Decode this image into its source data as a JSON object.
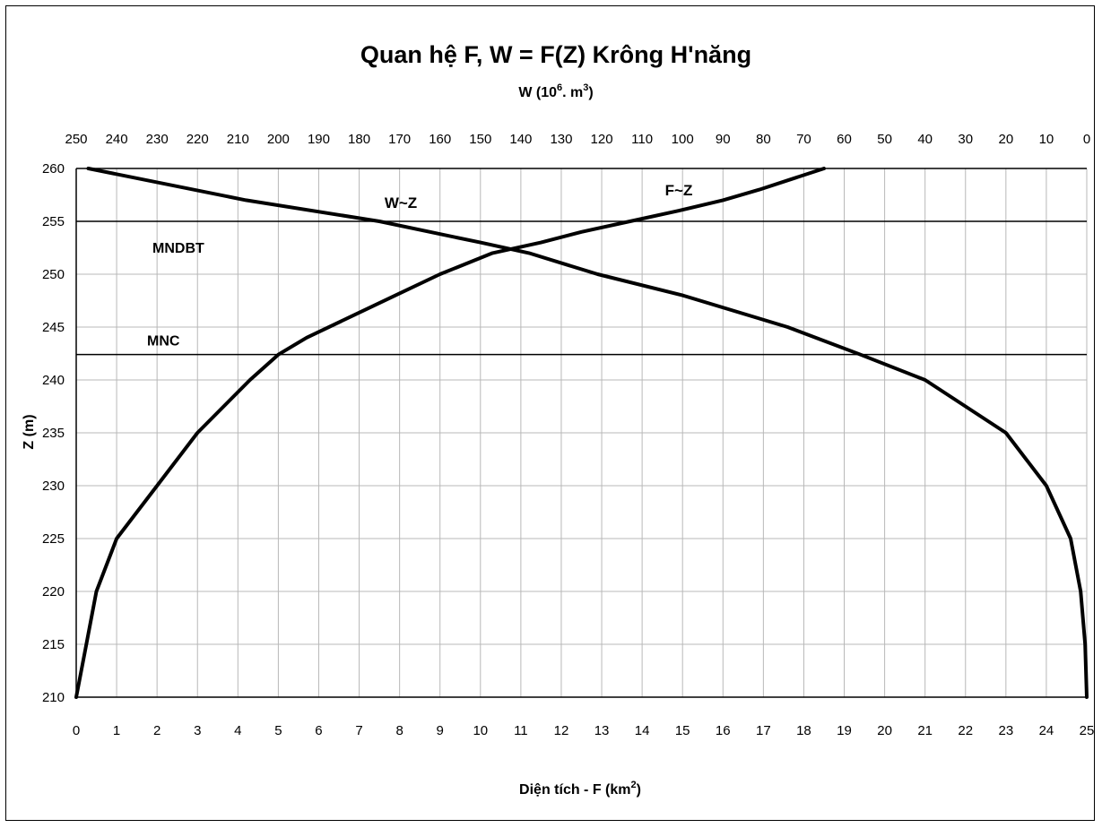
{
  "chart_data": {
    "type": "line",
    "title": "Quan hệ F, W = F(Z) Krông H'năng",
    "x_top_label_base": "W (10",
    "x_top_label_exp1": "6",
    "x_top_label_mid": ". m",
    "x_top_label_exp2": "3",
    "x_top_label_end": ")",
    "x_bottom_label_base": "Diện tích - F (km",
    "x_bottom_label_exp": "2",
    "x_bottom_label_end": ")",
    "ylabel": "Z (m)",
    "ylim": [
      210,
      260
    ],
    "x_bottom_range": [
      0,
      25
    ],
    "x_top_range": [
      250,
      0
    ],
    "x_top_reversed": true,
    "y_ticks": [
      210,
      215,
      220,
      225,
      230,
      235,
      240,
      245,
      250,
      255,
      260
    ],
    "x_bottom_ticks": [
      0,
      1,
      2,
      3,
      4,
      5,
      6,
      7,
      8,
      9,
      10,
      11,
      12,
      13,
      14,
      15,
      16,
      17,
      18,
      19,
      20,
      21,
      22,
      23,
      24,
      25
    ],
    "x_top_ticks": [
      250,
      240,
      230,
      220,
      210,
      200,
      190,
      180,
      170,
      160,
      150,
      140,
      130,
      120,
      110,
      100,
      90,
      80,
      70,
      60,
      50,
      40,
      30,
      20,
      10,
      0
    ],
    "grid": true,
    "reference_lines": [
      {
        "label": "MNDBT",
        "z": 255
      },
      {
        "label": "MNC",
        "z": 242.4
      }
    ],
    "series": [
      {
        "name": "F~Z",
        "axis": "bottom",
        "z": [
          210,
          215,
          220,
          225,
          230,
          235,
          240,
          242.4,
          244,
          246,
          248,
          250,
          252,
          253,
          254,
          255,
          256,
          257,
          258,
          259,
          260
        ],
        "f": [
          0,
          0.25,
          0.5,
          1.0,
          2.0,
          3.0,
          4.3,
          5.0,
          5.7,
          6.8,
          7.9,
          9.0,
          10.3,
          11.5,
          12.5,
          13.7,
          14.9,
          16.0,
          16.9,
          17.7,
          18.5
        ]
      },
      {
        "name": "W~Z",
        "axis": "top",
        "z": [
          210,
          215,
          220,
          225,
          230,
          235,
          240,
          242.4,
          245,
          248,
          250,
          252,
          253,
          255,
          257,
          260
        ],
        "w": [
          0,
          0.4,
          1.5,
          4,
          10,
          20,
          40,
          56,
          74,
          100,
          121,
          138,
          150,
          175,
          208,
          247
        ]
      }
    ]
  }
}
